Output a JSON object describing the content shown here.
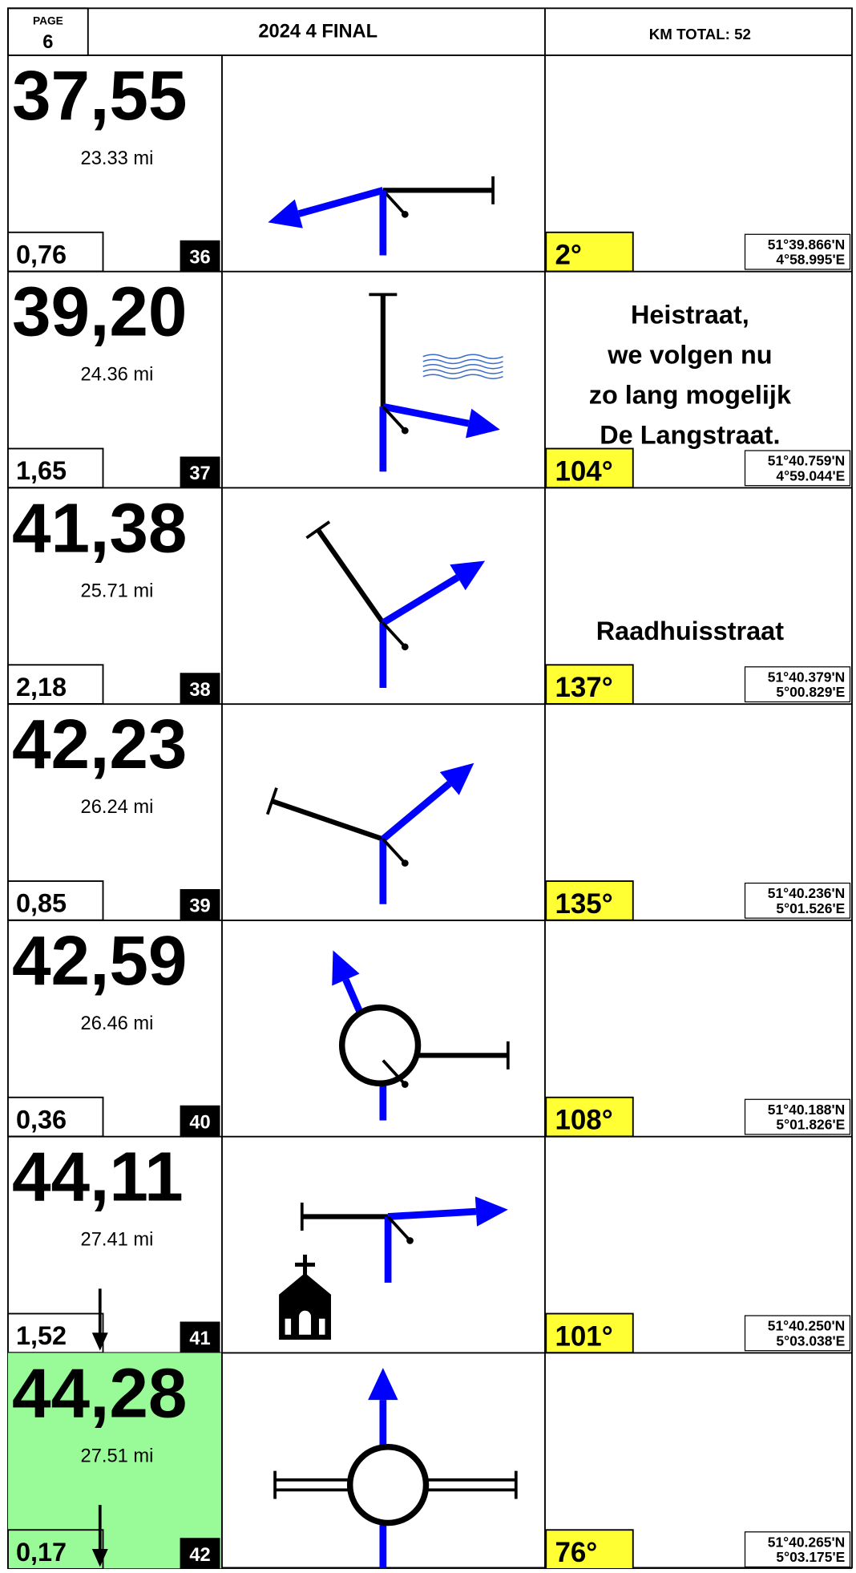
{
  "header": {
    "page_label": "PAGE",
    "page_number": "6",
    "title": "2024 4 FINAL",
    "km_total": "KM TOTAL: 52"
  },
  "rows": [
    {
      "km": "37,55",
      "mi": "23.33 mi",
      "partial": "0,76",
      "number": "36",
      "heading": "2°",
      "lat": "51°39.866'N",
      "lon": "4°58.995'E"
    },
    {
      "km": "39,20",
      "mi": "24.36 mi",
      "partial": "1,65",
      "number": "37",
      "heading": "104°",
      "lat": "51°40.759'N",
      "lon": "4°59.044'E",
      "note": [
        "Heistraat,",
        "we volgen nu",
        "zo lang mogelijk",
        "De Langstraat."
      ]
    },
    {
      "km": "41,38",
      "mi": "25.71 mi",
      "partial": "2,18",
      "number": "38",
      "heading": "137°",
      "lat": "51°40.379'N",
      "lon": "5°00.829'E",
      "note": [
        "Raadhuisstraat"
      ]
    },
    {
      "km": "42,23",
      "mi": "26.24 mi",
      "partial": "0,85",
      "number": "39",
      "heading": "135°",
      "lat": "51°40.236'N",
      "lon": "5°01.526'E"
    },
    {
      "km": "42,59",
      "mi": "26.46 mi",
      "partial": "0,36",
      "number": "40",
      "heading": "108°",
      "lat": "51°40.188'N",
      "lon": "5°01.826'E"
    },
    {
      "km": "44,11",
      "mi": "27.41 mi",
      "partial": "1,52",
      "number": "41",
      "heading": "101°",
      "lat": "51°40.250'N",
      "lon": "5°03.038'E"
    },
    {
      "km": "44,28",
      "mi": "27.51 mi",
      "partial": "0,17",
      "number": "42",
      "heading": "76°",
      "lat": "51°40.265'N",
      "lon": "5°03.175'E"
    }
  ]
}
